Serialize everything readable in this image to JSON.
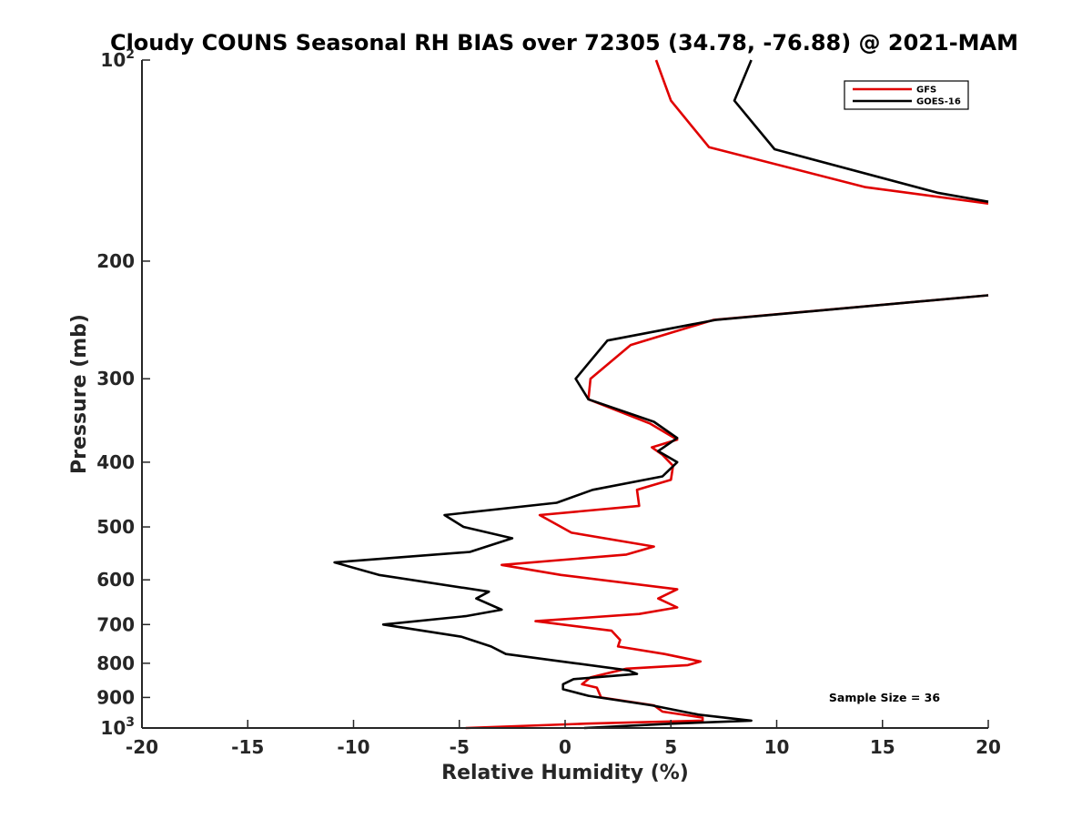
{
  "chart_data": {
    "type": "line",
    "title": "Cloudy COUNS Seasonal RH BIAS over 72305 (34.78, -76.88) @ 2021-MAM",
    "xlabel": "Relative Humidity (%)",
    "ylabel": "Pressure (mb)",
    "xlim": [
      -20,
      20
    ],
    "ylim": [
      1000,
      100
    ],
    "yscale": "log",
    "y_reversed": true,
    "x_ticks": [
      -20,
      -15,
      -10,
      -5,
      0,
      5,
      10,
      15,
      20
    ],
    "x_tick_labels": [
      "-20",
      "-15",
      "-10",
      "-5",
      "0",
      "5",
      "10",
      "15",
      "20"
    ],
    "y_ticks": [
      100,
      200,
      300,
      400,
      500,
      600,
      700,
      800,
      900,
      1000
    ],
    "y_tick_labels": [
      {
        "base": "10",
        "sup": "2"
      },
      {
        "base": "200",
        "sup": ""
      },
      {
        "base": "300",
        "sup": ""
      },
      {
        "base": "400",
        "sup": ""
      },
      {
        "base": "500",
        "sup": ""
      },
      {
        "base": "600",
        "sup": ""
      },
      {
        "base": "700",
        "sup": ""
      },
      {
        "base": "800",
        "sup": ""
      },
      {
        "base": "900",
        "sup": ""
      },
      {
        "base": "10",
        "sup": "3"
      }
    ],
    "grid": false,
    "legend_position": "top-right",
    "annotation": "Sample Size = 36",
    "series": [
      {
        "name": "GFS",
        "color": "#e00000",
        "points": [
          [
            4.3,
            100
          ],
          [
            5.0,
            115
          ],
          [
            6.8,
            135
          ],
          [
            14.2,
            155
          ],
          [
            20,
            164
          ],
          [
            null,
            null
          ],
          [
            20,
            225
          ],
          [
            7.0,
            245
          ],
          [
            3.1,
            267
          ],
          [
            1.2,
            300
          ],
          [
            1.1,
            322
          ],
          [
            4.0,
            350
          ],
          [
            5.3,
            370
          ],
          [
            4.1,
            380
          ],
          [
            4.6,
            390
          ],
          [
            5.1,
            405
          ],
          [
            5.0,
            425
          ],
          [
            3.4,
            440
          ],
          [
            3.5,
            465
          ],
          [
            -1.2,
            480
          ],
          [
            0.3,
            510
          ],
          [
            4.2,
            535
          ],
          [
            2.9,
            550
          ],
          [
            -3.0,
            570
          ],
          [
            -0.2,
            590
          ],
          [
            5.3,
            620
          ],
          [
            4.4,
            640
          ],
          [
            5.3,
            660
          ],
          [
            3.5,
            675
          ],
          [
            -1.4,
            692
          ],
          [
            2.2,
            715
          ],
          [
            2.6,
            738
          ],
          [
            2.5,
            755
          ],
          [
            4.7,
            775
          ],
          [
            6.4,
            795
          ],
          [
            5.8,
            805
          ],
          [
            2.9,
            815
          ],
          [
            1.2,
            840
          ],
          [
            0.8,
            860
          ],
          [
            1.5,
            870
          ],
          [
            1.7,
            900
          ],
          [
            4.2,
            925
          ],
          [
            4.6,
            945
          ],
          [
            6.5,
            965
          ],
          [
            6.5,
            975
          ],
          [
            1.0,
            985
          ],
          [
            -4.7,
            1000
          ]
        ]
      },
      {
        "name": "GOES-16",
        "color": "#000000",
        "points": [
          [
            8.8,
            100
          ],
          [
            8.0,
            115
          ],
          [
            9.9,
            136
          ],
          [
            17.6,
            158
          ],
          [
            20,
            163
          ],
          [
            null,
            null
          ],
          [
            20,
            225
          ],
          [
            7.1,
            245
          ],
          [
            2.0,
            263
          ],
          [
            1.0,
            287
          ],
          [
            0.5,
            300
          ],
          [
            1.1,
            322
          ],
          [
            4.2,
            348
          ],
          [
            5.3,
            368
          ],
          [
            4.4,
            385
          ],
          [
            5.3,
            400
          ],
          [
            4.6,
            420
          ],
          [
            1.3,
            440
          ],
          [
            -0.4,
            460
          ],
          [
            -5.7,
            480
          ],
          [
            -4.8,
            500
          ],
          [
            -2.5,
            520
          ],
          [
            -4.5,
            545
          ],
          [
            -10.9,
            565
          ],
          [
            -8.8,
            590
          ],
          [
            -3.6,
            625
          ],
          [
            -4.2,
            640
          ],
          [
            -3.0,
            665
          ],
          [
            -4.7,
            680
          ],
          [
            -8.6,
            700
          ],
          [
            -4.9,
            730
          ],
          [
            -3.5,
            755
          ],
          [
            -2.8,
            775
          ],
          [
            0.5,
            800
          ],
          [
            3.0,
            820
          ],
          [
            3.4,
            830
          ],
          [
            0.4,
            845
          ],
          [
            -0.1,
            860
          ],
          [
            -0.1,
            875
          ],
          [
            1.1,
            895
          ],
          [
            4.1,
            925
          ],
          [
            6.3,
            955
          ],
          [
            8.8,
            975
          ],
          [
            5.1,
            985
          ],
          [
            0.9,
            1000
          ]
        ]
      }
    ]
  }
}
